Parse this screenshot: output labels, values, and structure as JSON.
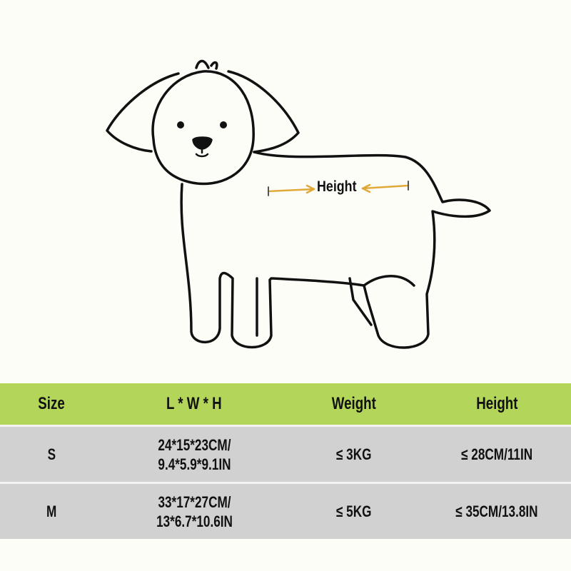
{
  "diagram": {
    "measure_label": "Height",
    "arrow_color": "#e0a93a",
    "outline_color": "#111111"
  },
  "table": {
    "header_color": "#b3d65a",
    "row_color": "#d1d1d1",
    "headers": [
      "Size",
      "L * W * H",
      "Weight",
      "Height"
    ],
    "rows": [
      {
        "size": "S",
        "dims_cm": "24*15*23CM/",
        "dims_in": "9.4*5.9*9.1IN",
        "weight": "≤ 3KG",
        "height": "≤ 28CM/11IN"
      },
      {
        "size": "M",
        "dims_cm": "33*17*27CM/",
        "dims_in": "13*6.7*10.6IN",
        "weight": "≤ 5KG",
        "height": "≤ 35CM/13.8IN"
      }
    ]
  }
}
